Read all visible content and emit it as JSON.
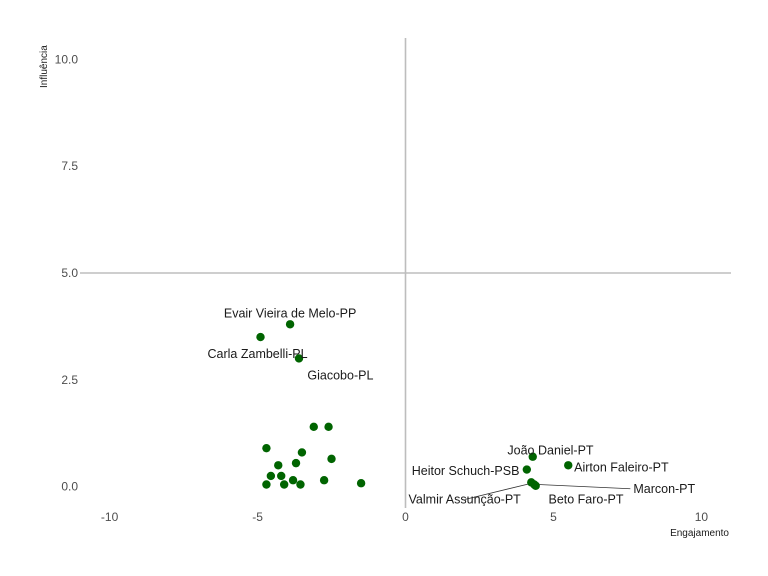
{
  "chart_data": {
    "type": "scatter",
    "title": "",
    "xlabel": "Engajamento",
    "ylabel": "Influência",
    "xlim": [
      -11,
      11
    ],
    "ylim": [
      -0.5,
      10.5
    ],
    "x_ticks": [
      -10,
      -5,
      0,
      5,
      10
    ],
    "x_tick_labels": [
      "-10",
      "-5",
      "0",
      "5",
      "10"
    ],
    "y_ticks": [
      0,
      2.5,
      5,
      7.5,
      10
    ],
    "y_tick_labels": [
      "0.0",
      "2.5",
      "5.0",
      "7.5",
      "10.0"
    ],
    "reference_lines": {
      "x": 0,
      "y": 5
    },
    "grid": false,
    "point_color": "#006400",
    "line_color": "#bdbdbd",
    "labeled_points": [
      {
        "label": "Evair Vieira de Melo-PP",
        "x": -3.9,
        "y": 3.8,
        "anchor": "middle",
        "lx": -3.9,
        "ly": 4.05
      },
      {
        "label": "Carla Zambelli-PL",
        "x": -4.9,
        "y": 3.5,
        "anchor": "middle",
        "lx": -5.0,
        "ly": 3.1
      },
      {
        "label": "Giacobo-PL",
        "x": -3.6,
        "y": 3.0,
        "anchor": "middle",
        "lx": -2.2,
        "ly": 2.6
      },
      {
        "label": "João Daniel-PT",
        "x": 4.3,
        "y": 0.7,
        "anchor": "middle",
        "lx": 4.9,
        "ly": 0.85
      },
      {
        "label": "Heitor Schuch-PSB",
        "x": 4.1,
        "y": 0.4,
        "anchor": "end",
        "lx": 3.85,
        "ly": 0.37
      },
      {
        "label": "Airton Faleiro-PT",
        "x": 5.5,
        "y": 0.5,
        "anchor": "start",
        "lx": 5.7,
        "ly": 0.45
      },
      {
        "label": "Marcon-PT",
        "x": 4.35,
        "y": 0.05,
        "anchor": "start",
        "lx": 7.7,
        "ly": -0.05
      },
      {
        "label": "Valmir Assunção-PT",
        "x": 4.25,
        "y": 0.1,
        "anchor": "middle",
        "lx": 2.0,
        "ly": -0.3
      },
      {
        "label": "Beto Faro-PT",
        "x": 4.4,
        "y": 0.02,
        "anchor": "middle",
        "lx": 6.1,
        "ly": -0.3
      }
    ],
    "unlabeled_points": [
      {
        "x": -4.7,
        "y": 0.9
      },
      {
        "x": -3.1,
        "y": 1.4
      },
      {
        "x": -2.6,
        "y": 1.4
      },
      {
        "x": -3.5,
        "y": 0.8
      },
      {
        "x": -2.5,
        "y": 0.65
      },
      {
        "x": -4.3,
        "y": 0.5
      },
      {
        "x": -3.7,
        "y": 0.55
      },
      {
        "x": -4.55,
        "y": 0.25
      },
      {
        "x": -4.2,
        "y": 0.25
      },
      {
        "x": -3.8,
        "y": 0.15
      },
      {
        "x": -2.75,
        "y": 0.15
      },
      {
        "x": -4.7,
        "y": 0.05
      },
      {
        "x": -4.1,
        "y": 0.05
      },
      {
        "x": -3.55,
        "y": 0.05
      },
      {
        "x": -1.5,
        "y": 0.08
      }
    ]
  }
}
